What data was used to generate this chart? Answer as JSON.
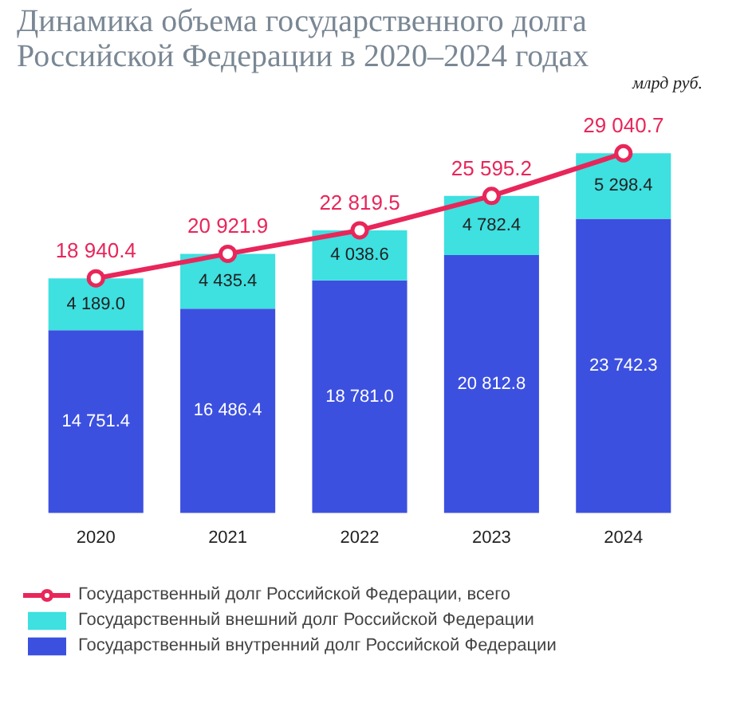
{
  "chart_data": {
    "type": "bar",
    "stacked": true,
    "title": "Динамика объема государственного долга\nРоссийской Федерации в 2020–2024 годах",
    "annotations": [
      "млрд руб."
    ],
    "categories": [
      "2020",
      "2021",
      "2022",
      "2023",
      "2024"
    ],
    "series": [
      {
        "name": "Государственный внутренний долг Российской Федерации",
        "color": "#3c50e0",
        "values": [
          14751.4,
          16486.4,
          18781.0,
          20812.8,
          23742.3
        ],
        "value_labels": [
          "14 751.4",
          "16 486.4",
          "18 781.0",
          "20 812.8",
          "23 742.3"
        ]
      },
      {
        "name": "Государственный внешний долг Российской Федерации",
        "color": "#3ee0e0",
        "values": [
          4189.0,
          4435.4,
          4038.6,
          4782.4,
          5298.4
        ],
        "value_labels": [
          "4 189.0",
          "4 435.4",
          "4 038.6",
          "4 782.4",
          "5 298.4"
        ]
      },
      {
        "name": "Государственный долг Российской Федерации, всего",
        "type": "line",
        "color": "#e8265a",
        "marker": "circle",
        "values": [
          18940.4,
          20921.9,
          22819.5,
          25595.2,
          29040.7
        ],
        "value_labels": [
          "18 940.4",
          "20 921.9",
          "22 819.5",
          "25 595.2",
          "29 040.7"
        ]
      }
    ],
    "legend": "bottom",
    "tick_labels": "x"
  }
}
